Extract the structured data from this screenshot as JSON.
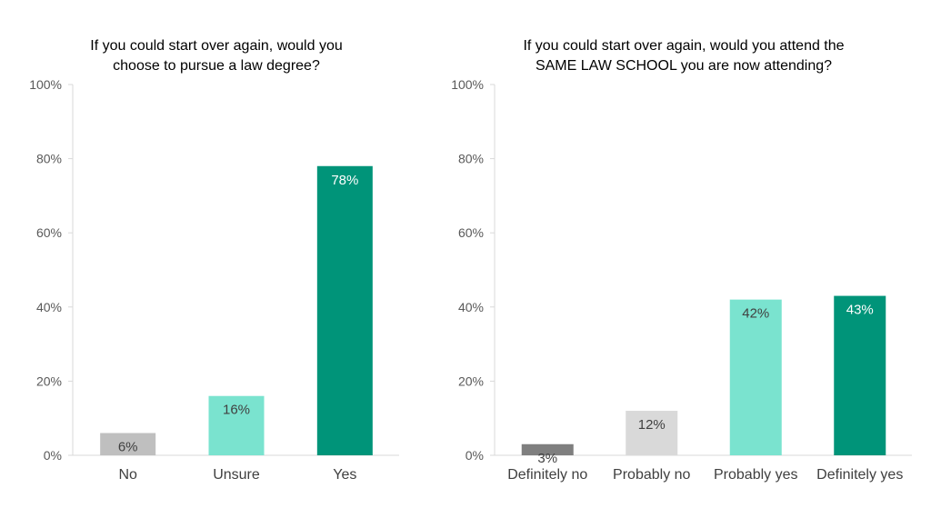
{
  "chart_data": [
    {
      "type": "bar",
      "title_lines": [
        "If you could start over again, would  you",
        "choose to pursue  a law degree?"
      ],
      "categories": [
        "No",
        "Unsure",
        "Yes"
      ],
      "values": [
        6,
        16,
        78
      ],
      "value_labels": [
        "6%",
        "16%",
        "78%"
      ],
      "colors": [
        "#bfbfbf",
        "#7ae3cf",
        "#009479"
      ],
      "label_colors": [
        "#404040",
        "#404040",
        "#ffffff"
      ],
      "y_ticks": [
        "0%",
        "20%",
        "40%",
        "60%",
        "80%",
        "100%"
      ],
      "ylim": [
        0,
        100
      ],
      "grid": false,
      "legend": "none"
    },
    {
      "type": "bar",
      "title_lines": [
        "If you could start over again, would you attend the",
        "SAME LAW SCHOOL you are now attending?"
      ],
      "categories": [
        "Definitely no",
        "Probably no",
        "Probably yes",
        "Definitely yes"
      ],
      "values": [
        3,
        12,
        42,
        43
      ],
      "value_labels": [
        "3%",
        "12%",
        "42%",
        "43%"
      ],
      "colors": [
        "#7f7f7f",
        "#d9d9d9",
        "#7ae3cf",
        "#009479"
      ],
      "label_colors": [
        "#404040",
        "#404040",
        "#404040",
        "#ffffff"
      ],
      "y_ticks": [
        "0%",
        "20%",
        "40%",
        "60%",
        "80%",
        "100%"
      ],
      "ylim": [
        0,
        100
      ],
      "grid": false,
      "legend": "none"
    }
  ]
}
